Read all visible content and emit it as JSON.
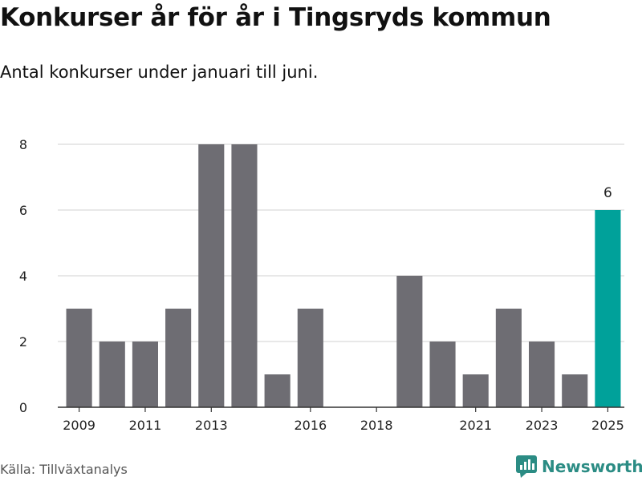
{
  "title": "Konkurser år för år i Tingsryds kommun",
  "subtitle": "Antal konkurser under januari till juni.",
  "source": "Källa: Tillväxtanalys",
  "brand": {
    "name": "Newsworthy",
    "color": "#2b8c84",
    "icon": "newsworthy-logo-icon"
  },
  "colors": {
    "bar": "#6e6d73",
    "highlight": "#00a19a",
    "grid": "#d9d9d9",
    "axis": "#333333"
  },
  "chart_data": {
    "type": "bar",
    "categories": [
      "2009",
      "2010",
      "2011",
      "2012",
      "2013",
      "2014",
      "2015",
      "2016",
      "2017",
      "2018",
      "2019",
      "2020",
      "2021",
      "2022",
      "2023",
      "2024",
      "2025"
    ],
    "values": [
      3,
      2,
      2,
      3,
      8,
      8,
      1,
      3,
      0,
      0,
      4,
      2,
      1,
      3,
      2,
      1,
      6
    ],
    "x_tick_labels": [
      "2009",
      "2011",
      "2013",
      "2016",
      "2018",
      "2021",
      "2023",
      "2025"
    ],
    "y_ticks": [
      0,
      2,
      4,
      6,
      8
    ],
    "ylim": [
      0,
      8
    ],
    "highlight_category": "2025",
    "data_labels": [
      {
        "category": "2025",
        "text": "6"
      }
    ],
    "grid": true
  }
}
